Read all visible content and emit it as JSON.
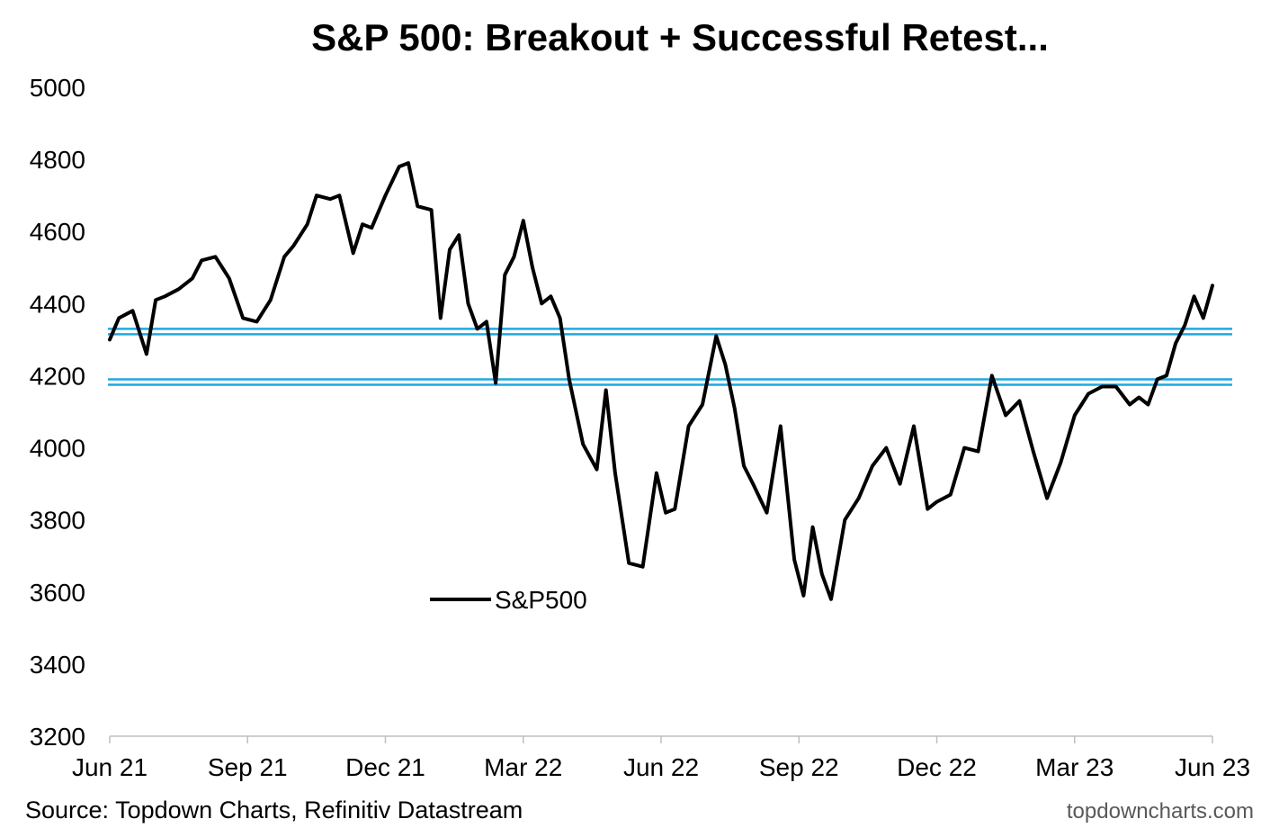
{
  "chart_data": {
    "type": "line",
    "title": "S&P 500: Breakout + Successful Retest...",
    "xlabel": "",
    "ylabel": "",
    "ylim": [
      3200,
      5000
    ],
    "yticks": [
      3200,
      3400,
      3600,
      3800,
      4000,
      4200,
      4400,
      4600,
      4800,
      5000
    ],
    "x_start": "Jun 21",
    "x_end": "Jun 23",
    "xticks": [
      {
        "label": "Jun 21",
        "month_index": 0
      },
      {
        "label": "Sep 21",
        "month_index": 3
      },
      {
        "label": "Dec 21",
        "month_index": 6
      },
      {
        "label": "Mar 22",
        "month_index": 9
      },
      {
        "label": "Jun 22",
        "month_index": 12
      },
      {
        "label": "Sep 22",
        "month_index": 15
      },
      {
        "label": "Dec 22",
        "month_index": 18
      },
      {
        "label": "Mar 23",
        "month_index": 21
      },
      {
        "label": "Jun 23",
        "month_index": 24
      }
    ],
    "reference_lines": [
      {
        "name": "resistance-upper",
        "value": 4330,
        "color": "#1fa8e0"
      },
      {
        "name": "resistance-lower",
        "value": 4315,
        "color": "#1fa8e0"
      },
      {
        "name": "support-upper",
        "value": 4190,
        "color": "#1fa8e0"
      },
      {
        "name": "support-lower",
        "value": 4175,
        "color": "#1fa8e0"
      }
    ],
    "series": [
      {
        "name": "S&P500",
        "color": "#000000",
        "x_months": [
          0.0,
          0.2,
          0.5,
          0.8,
          1.0,
          1.2,
          1.5,
          1.8,
          2.0,
          2.3,
          2.6,
          2.9,
          3.2,
          3.5,
          3.8,
          4.0,
          4.3,
          4.5,
          4.8,
          5.0,
          5.3,
          5.5,
          5.7,
          6.0,
          6.3,
          6.5,
          6.7,
          7.0,
          7.2,
          7.4,
          7.6,
          7.8,
          8.0,
          8.2,
          8.4,
          8.6,
          8.8,
          9.0,
          9.2,
          9.4,
          9.6,
          9.8,
          10.0,
          10.3,
          10.6,
          10.8,
          11.0,
          11.3,
          11.6,
          11.9,
          12.1,
          12.3,
          12.6,
          12.9,
          13.2,
          13.4,
          13.6,
          13.8,
          14.0,
          14.3,
          14.6,
          14.9,
          15.1,
          15.3,
          15.5,
          15.7,
          16.0,
          16.3,
          16.6,
          16.9,
          17.2,
          17.5,
          17.8,
          18.0,
          18.3,
          18.6,
          18.9,
          19.2,
          19.5,
          19.8,
          20.1,
          20.4,
          20.7,
          21.0,
          21.3,
          21.6,
          21.9,
          22.2,
          22.4,
          22.6,
          22.8,
          23.0,
          23.2,
          23.4,
          23.6,
          23.8,
          24.0
        ],
        "values": [
          4300,
          4360,
          4380,
          4260,
          4410,
          4420,
          4440,
          4470,
          4520,
          4530,
          4470,
          4360,
          4350,
          4410,
          4530,
          4560,
          4620,
          4700,
          4690,
          4700,
          4540,
          4620,
          4610,
          4700,
          4780,
          4790,
          4670,
          4660,
          4360,
          4550,
          4590,
          4400,
          4330,
          4350,
          4180,
          4480,
          4530,
          4630,
          4500,
          4400,
          4420,
          4360,
          4190,
          4010,
          3940,
          4160,
          3930,
          3680,
          3670,
          3930,
          3820,
          3830,
          4060,
          4120,
          4310,
          4230,
          4110,
          3950,
          3900,
          3820,
          4060,
          3690,
          3590,
          3780,
          3650,
          3580,
          3800,
          3860,
          3950,
          4000,
          3900,
          4060,
          3830,
          3850,
          3870,
          4000,
          3990,
          4200,
          4090,
          4130,
          3990,
          3860,
          3960,
          4090,
          4150,
          4170,
          4170,
          4120,
          4140,
          4120,
          4190,
          4200,
          4290,
          4340,
          4420,
          4360,
          4450
        ]
      }
    ]
  },
  "legend": {
    "label": "S&P500"
  },
  "footer": {
    "source": "Source: Topdown Charts, Refinitiv Datastream",
    "brand": "topdowncharts.com"
  }
}
